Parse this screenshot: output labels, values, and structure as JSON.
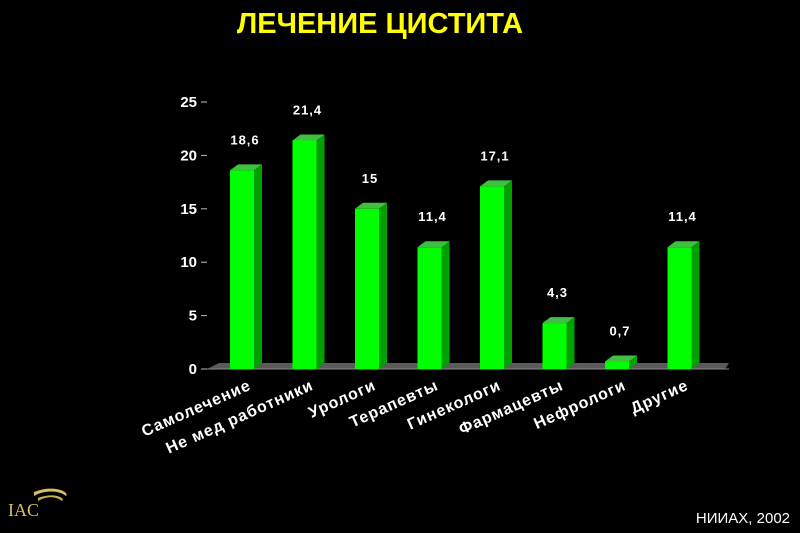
{
  "title": "ЛЕЧЕНИЕ ЦИСТИТА",
  "source": "НИИАХ, 2002",
  "logo_text": "IAC",
  "colors": {
    "bar": "#00ff00",
    "title": "#ffff00",
    "background": "#000000"
  },
  "chart_data": {
    "type": "bar",
    "title": "ЛЕЧЕНИЕ ЦИСТИТА",
    "categories": [
      "Самолечение",
      "Не мед работники",
      "Урологи",
      "Терапевты",
      "Гинекологи",
      "Фармацевты",
      "Нефрологи",
      "Другие"
    ],
    "values": [
      18.6,
      21.4,
      15,
      11.4,
      17.1,
      4.3,
      0.7,
      11.4
    ],
    "value_labels": [
      "18,6",
      "21,4",
      "15",
      "11,4",
      "17,1",
      "4,3",
      "0,7",
      "11,4"
    ],
    "yticks": [
      0,
      5,
      10,
      15,
      20,
      25
    ],
    "ylim": [
      0,
      25
    ],
    "xlabel": "",
    "ylabel": "",
    "grid": false,
    "style": "3d"
  }
}
